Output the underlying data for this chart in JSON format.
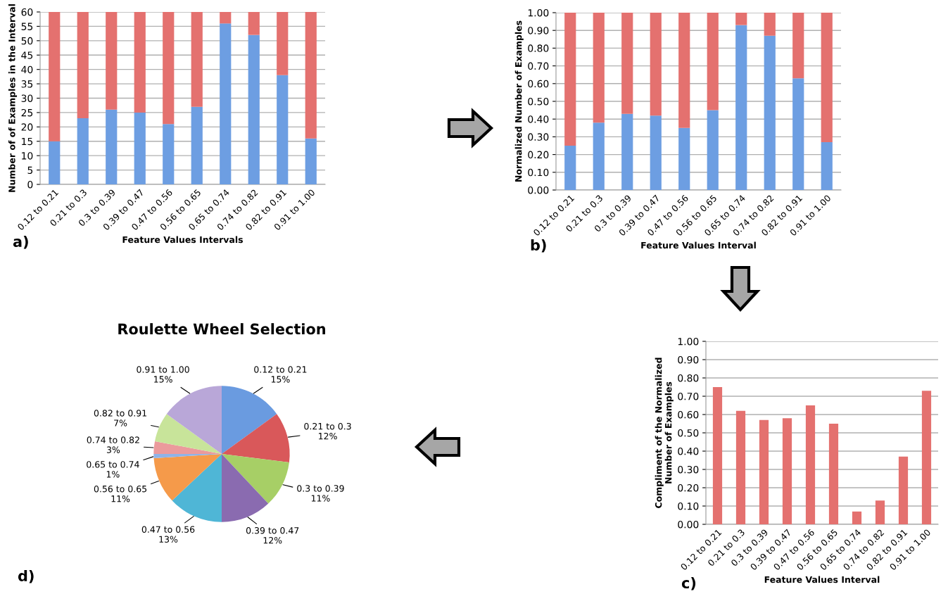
{
  "chart_data": [
    {
      "type": "bar",
      "stacked": true,
      "xlabel": "Feature Values Intervals",
      "ylabel": "Number of of Examples in the Interval",
      "categories": [
        "0.12 to 0.21",
        "0.21 to 0.3",
        "0.3 to 0.39",
        "0.39 to 0.47",
        "0.47 to 0.56",
        "0.56 to 0.65",
        "0.65 to 0.74",
        "0.74 to 0.82",
        "0.82 to 0.91",
        "0.91 to 1.00"
      ],
      "series": [
        {
          "color": "#6d9ee2",
          "values": [
            15,
            23,
            26,
            25,
            21,
            27,
            56,
            52,
            38,
            16
          ]
        },
        {
          "color": "#e4716f",
          "values": [
            45,
            37,
            34,
            35,
            39,
            33,
            4,
            8,
            22,
            44
          ]
        }
      ],
      "ylim": [
        0,
        60
      ],
      "yticks": [
        0,
        5,
        10,
        15,
        20,
        25,
        30,
        35,
        40,
        45,
        50,
        55,
        60
      ],
      "grid": "y",
      "annotations": [
        "a)"
      ]
    },
    {
      "type": "bar",
      "stacked": true,
      "xlabel": "Feature Values Interval",
      "ylabel": "Normalized Number of Examples",
      "categories": [
        "0.12 to 0.21",
        "0.21 to 0.3",
        "0.3 to 0.39",
        "0.39 to 0.47",
        "0.47 to 0.56",
        "0.56 to 0.65",
        "0.65 to 0.74",
        "0.74 to 0.82",
        "0.82 to 0.91",
        "0.91 to 1.00"
      ],
      "series": [
        {
          "color": "#6d9ee2",
          "values": [
            0.25,
            0.38,
            0.43,
            0.42,
            0.35,
            0.45,
            0.93,
            0.87,
            0.63,
            0.27
          ]
        },
        {
          "color": "#e4716f",
          "values": [
            0.75,
            0.62,
            0.57,
            0.58,
            0.65,
            0.55,
            0.07,
            0.13,
            0.37,
            0.73
          ]
        }
      ],
      "ylim": [
        0,
        1
      ],
      "yticks": [
        {
          "value": 0,
          "label": "0.00"
        },
        {
          "value": 0.1,
          "label": "0.10"
        },
        {
          "value": 0.2,
          "label": "0.20"
        },
        {
          "value": 0.3,
          "label": "0.30"
        },
        {
          "value": 0.4,
          "label": "0.40"
        },
        {
          "value": 0.5,
          "label": "0.50"
        },
        {
          "value": 0.6,
          "label": "0.60"
        },
        {
          "value": 0.7,
          "label": "0.70"
        },
        {
          "value": 0.8,
          "label": "0.80"
        },
        {
          "value": 0.9,
          "label": "0.90"
        },
        {
          "value": 1,
          "label": "1.00"
        }
      ],
      "grid": "y",
      "annotations": [
        "b)"
      ]
    },
    {
      "type": "bar",
      "xlabel": "Feature Values Interval",
      "ylabel": "Compliment of the Normalized\nNumber of Examples",
      "categories": [
        "0.12 to 0.21",
        "0.21 to 0.3",
        "0.3 to 0.39",
        "0.39 to 0.47",
        "0.47 to 0.56",
        "0.56 to 0.65",
        "0.65 to 0.74",
        "0.74 to 0.82",
        "0.82 to 0.91",
        "0.91 to 1.00"
      ],
      "series": [
        {
          "color": "#e4716f",
          "values": [
            0.75,
            0.62,
            0.57,
            0.58,
            0.65,
            0.55,
            0.07,
            0.13,
            0.37,
            0.73
          ]
        }
      ],
      "ylim": [
        0,
        1
      ],
      "yticks": [
        {
          "value": 0,
          "label": "0.00"
        },
        {
          "value": 0.1,
          "label": "0.10"
        },
        {
          "value": 0.2,
          "label": "0.20"
        },
        {
          "value": 0.3,
          "label": "0.30"
        },
        {
          "value": 0.4,
          "label": "0.40"
        },
        {
          "value": 0.5,
          "label": "0.50"
        },
        {
          "value": 0.6,
          "label": "0.60"
        },
        {
          "value": 0.7,
          "label": "0.70"
        },
        {
          "value": 0.8,
          "label": "0.80"
        },
        {
          "value": 0.9,
          "label": "0.90"
        },
        {
          "value": 1,
          "label": "1.00"
        }
      ],
      "grid": "y",
      "annotations": [
        "c)"
      ]
    },
    {
      "type": "pie",
      "title": "Roulette Wheel Selection",
      "categories": [
        "0.12 to 0.21",
        "0.21 to 0.3",
        "0.3 to 0.39",
        "0.39 to 0.47",
        "0.47 to 0.56",
        "0.56 to 0.65",
        "0.65 to 0.74",
        "0.74 to 0.82",
        "0.82 to 0.91",
        "0.91 to 1.00"
      ],
      "values": [
        15,
        12,
        11,
        12,
        13,
        11,
        1,
        3,
        7,
        15
      ],
      "value_labels": [
        "15%",
        "12%",
        "11%",
        "12%",
        "13%",
        "11%",
        "1%",
        "3%",
        "7%",
        "15%"
      ],
      "colors": [
        "#6a9be0",
        "#d9585a",
        "#a7cf66",
        "#8a6bb0",
        "#4fb6d6",
        "#f59a4a",
        "#8fb3e8",
        "#eb9a9c",
        "#c8e49a",
        "#b9a7d8"
      ],
      "annotations": [
        "d)"
      ]
    }
  ]
}
